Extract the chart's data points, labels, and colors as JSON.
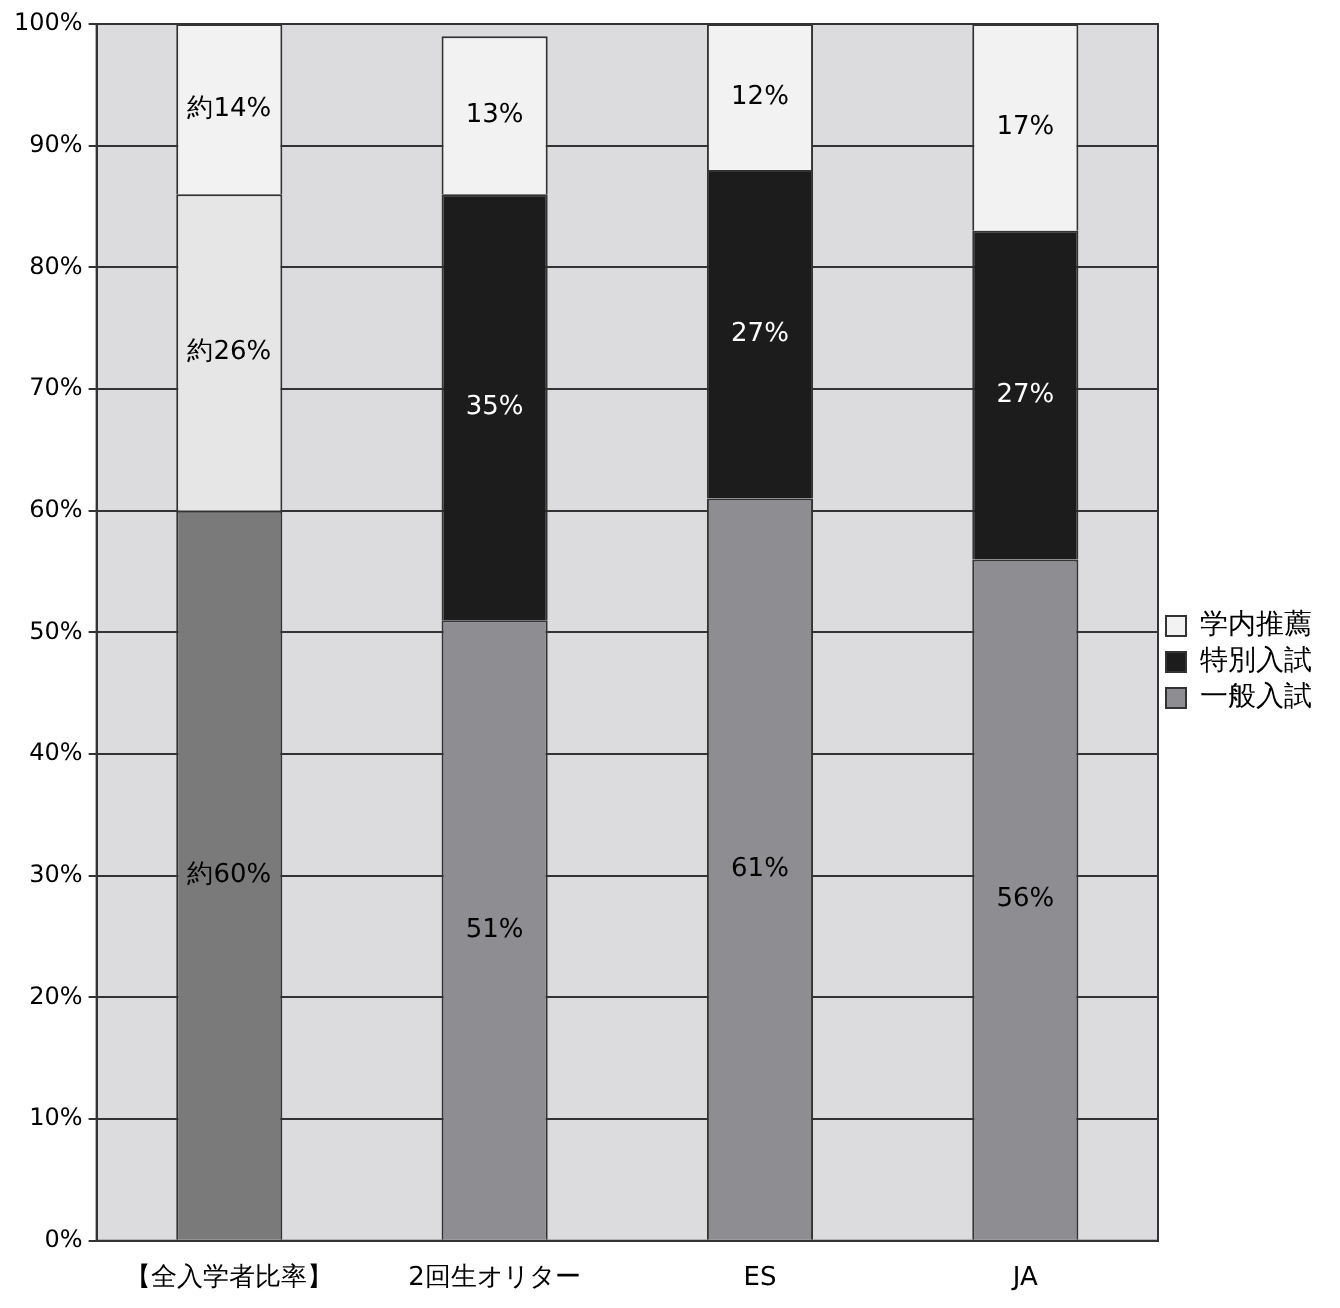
{
  "chart_data": {
    "type": "bar",
    "stacked": true,
    "categories": [
      "【全入学者比率】",
      "2回生オリター",
      "ES",
      "JA"
    ],
    "series": [
      {
        "name": "一般入試",
        "color": "#8e8e92",
        "colors": [
          "#7a7a7a",
          "#8e8e92",
          "#8e8e92",
          "#8e8e92"
        ],
        "values": [
          60,
          51,
          61,
          56
        ],
        "value_labels": [
          "約60%",
          "51%",
          "61%",
          "56%"
        ]
      },
      {
        "name": "特別入試",
        "color": "#1c1c1c",
        "colors": [
          "#e6e6e6",
          "#1c1c1c",
          "#1c1c1c",
          "#1c1c1c"
        ],
        "values": [
          26,
          35,
          27,
          27
        ],
        "value_labels": [
          "約26%",
          "35%",
          "27%",
          "27%"
        ]
      },
      {
        "name": "学内推薦",
        "color": "#f2f2f2",
        "colors": [
          "#f2f2f2",
          "#f2f2f2",
          "#f2f2f2",
          "#f2f2f2"
        ],
        "values": [
          14,
          13,
          12,
          17
        ],
        "value_labels": [
          "約14%",
          "13%",
          "12%",
          "17%"
        ]
      }
    ],
    "ylim": [
      0,
      100
    ],
    "yticks": [
      {
        "value": 0,
        "label": "0%"
      },
      {
        "value": 10,
        "label": "10%"
      },
      {
        "value": 20,
        "label": "20%"
      },
      {
        "value": 30,
        "label": "30%"
      },
      {
        "value": 40,
        "label": "40%"
      },
      {
        "value": 50,
        "label": "50%"
      },
      {
        "value": 60,
        "label": "60%"
      },
      {
        "value": 70,
        "label": "70%"
      },
      {
        "value": 80,
        "label": "80%"
      },
      {
        "value": 90,
        "label": "90%"
      },
      {
        "value": 100,
        "label": "100%"
      }
    ],
    "grid": "y",
    "legend": "right"
  }
}
